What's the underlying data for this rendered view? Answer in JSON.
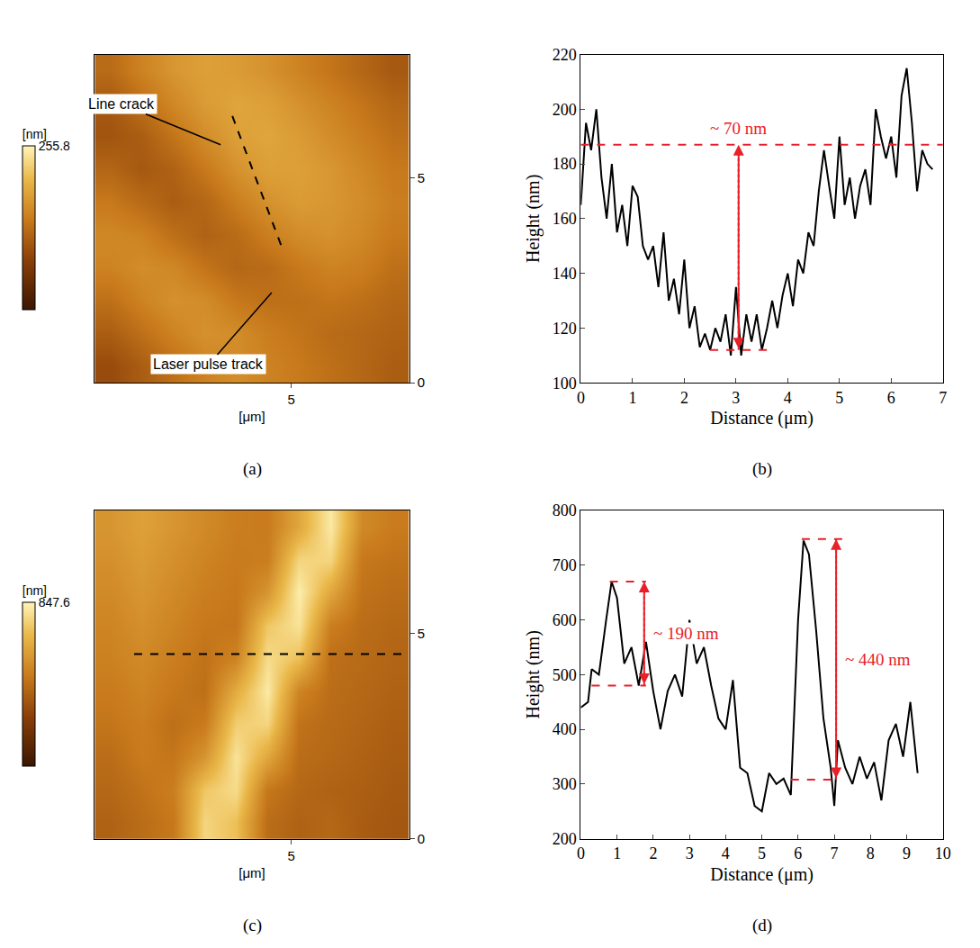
{
  "chart_data": [
    {
      "type": "heatmap",
      "label": "(a)",
      "x_label": "[μm]",
      "z_label": "[nm]",
      "x": [
        0.4,
        1.2,
        2.0,
        2.8,
        3.6,
        4.4,
        5.2,
        6.0,
        6.8,
        7.6
      ],
      "y": [
        0.4,
        1.2,
        2.0,
        2.8,
        3.6,
        4.4,
        5.2,
        6.0,
        6.8,
        7.6
      ],
      "z": [
        [
          90,
          110,
          130,
          150,
          160,
          150,
          140,
          130,
          120,
          110
        ],
        [
          110,
          130,
          150,
          165,
          160,
          145,
          135,
          125,
          120,
          115
        ],
        [
          130,
          150,
          165,
          160,
          140,
          130,
          130,
          135,
          130,
          120
        ],
        [
          150,
          160,
          155,
          135,
          120,
          125,
          140,
          150,
          145,
          130
        ],
        [
          155,
          150,
          130,
          115,
          125,
          145,
          160,
          165,
          155,
          140
        ],
        [
          140,
          125,
          110,
          120,
          145,
          165,
          175,
          170,
          160,
          145
        ],
        [
          120,
          105,
          115,
          140,
          165,
          180,
          180,
          170,
          155,
          140
        ],
        [
          100,
          110,
          135,
          160,
          180,
          185,
          175,
          160,
          145,
          130
        ],
        [
          105,
          130,
          155,
          175,
          185,
          180,
          165,
          150,
          135,
          120
        ],
        [
          125,
          150,
          170,
          180,
          175,
          165,
          150,
          135,
          120,
          105
        ]
      ],
      "zlim": [
        0,
        255.8
      ],
      "zticks": [
        255.8
      ],
      "xlim": [
        0,
        8
      ],
      "ylim": [
        0,
        8
      ],
      "xticks": [
        5
      ],
      "yticks": [
        0,
        5
      ],
      "profile_line": {
        "x": [
          3.5,
          4.8
        ],
        "y": [
          6.5,
          3.2
        ]
      },
      "annotations": [
        {
          "text": "Line crack",
          "x": 3.2,
          "y": 5.8
        },
        {
          "text": "Laser pulse track",
          "x": 4.5,
          "y": 2.2
        }
      ]
    },
    {
      "type": "line",
      "label": "(b)",
      "x_label": "Distance (μm)",
      "y_label": "Height (nm)",
      "color": "#000000",
      "x": [
        0,
        0.1,
        0.2,
        0.3,
        0.4,
        0.5,
        0.6,
        0.7,
        0.8,
        0.9,
        1.0,
        1.1,
        1.2,
        1.3,
        1.4,
        1.5,
        1.6,
        1.7,
        1.8,
        1.9,
        2.0,
        2.1,
        2.2,
        2.3,
        2.4,
        2.5,
        2.6,
        2.7,
        2.8,
        2.9,
        3.0,
        3.1,
        3.2,
        3.3,
        3.4,
        3.5,
        3.6,
        3.7,
        3.8,
        3.9,
        4.0,
        4.1,
        4.2,
        4.3,
        4.4,
        4.5,
        4.6,
        4.7,
        4.8,
        4.9,
        5.0,
        5.1,
        5.2,
        5.3,
        5.4,
        5.5,
        5.6,
        5.7,
        5.8,
        5.9,
        6.0,
        6.1,
        6.2,
        6.3,
        6.4,
        6.5,
        6.6,
        6.7,
        6.8
      ],
      "values": [
        165,
        195,
        185,
        200,
        175,
        160,
        180,
        155,
        165,
        150,
        172,
        168,
        150,
        145,
        150,
        135,
        155,
        130,
        138,
        125,
        145,
        120,
        128,
        113,
        118,
        112,
        120,
        115,
        125,
        110,
        135,
        110,
        125,
        115,
        125,
        112,
        120,
        130,
        120,
        132,
        140,
        128,
        145,
        140,
        155,
        150,
        170,
        185,
        172,
        160,
        190,
        165,
        175,
        160,
        172,
        178,
        165,
        200,
        190,
        182,
        190,
        175,
        205,
        215,
        195,
        170,
        185,
        180,
        178
      ],
      "xlim": [
        0,
        7
      ],
      "xticks": [
        0,
        1,
        2,
        3,
        4,
        5,
        6,
        7
      ],
      "ylim": [
        100,
        220
      ],
      "yticks": [
        100,
        120,
        140,
        160,
        180,
        200,
        220
      ],
      "measurements": [
        {
          "text": "~ 70 nm",
          "color": "#e8202a",
          "x": 3.05,
          "y_top": 187,
          "y_bottom": 112,
          "top_span": [
            0,
            7
          ],
          "bottom_span": [
            2.5,
            3.6
          ]
        }
      ]
    },
    {
      "type": "heatmap",
      "label": "(c)",
      "x_label": "[μm]",
      "z_label": "[nm]",
      "x": [
        0.4,
        1.2,
        2.0,
        2.8,
        3.6,
        4.4,
        5.2,
        6.0,
        6.8,
        7.6
      ],
      "y": [
        0.4,
        1.2,
        2.0,
        2.8,
        3.6,
        4.4,
        5.2,
        6.0,
        6.8,
        7.6
      ],
      "z": [
        [
          380,
          420,
          460,
          760,
          700,
          420,
          380,
          400,
          360,
          340
        ],
        [
          400,
          440,
          480,
          720,
          780,
          460,
          400,
          380,
          370,
          350
        ],
        [
          420,
          470,
          450,
          560,
          800,
          620,
          420,
          400,
          380,
          360
        ],
        [
          450,
          480,
          430,
          470,
          740,
          760,
          440,
          410,
          390,
          370
        ],
        [
          470,
          500,
          460,
          430,
          640,
          820,
          500,
          420,
          400,
          380
        ],
        [
          490,
          520,
          480,
          440,
          500,
          780,
          700,
          430,
          410,
          390
        ],
        [
          500,
          540,
          500,
          460,
          450,
          720,
          800,
          480,
          420,
          400
        ],
        [
          520,
          560,
          520,
          480,
          460,
          560,
          830,
          620,
          440,
          420
        ],
        [
          540,
          580,
          540,
          500,
          470,
          480,
          760,
          760,
          460,
          440
        ],
        [
          560,
          600,
          560,
          520,
          480,
          470,
          620,
          820,
          520,
          470
        ]
      ],
      "zlim": [
        0,
        847.6
      ],
      "zticks": [
        847.6
      ],
      "xlim": [
        0,
        8
      ],
      "ylim": [
        0,
        8
      ],
      "xticks": [
        5
      ],
      "yticks": [
        0,
        5
      ],
      "profile_line": {
        "x": [
          1.0,
          8.0
        ],
        "y": [
          4.5,
          4.5
        ]
      },
      "annotations": []
    },
    {
      "type": "line",
      "label": "(d)",
      "x_label": "Distance (μm)",
      "y_label": "Height (nm)",
      "color": "#000000",
      "x": [
        0,
        0.2,
        0.3,
        0.5,
        0.7,
        0.85,
        1.0,
        1.2,
        1.4,
        1.6,
        1.8,
        2.0,
        2.2,
        2.4,
        2.6,
        2.8,
        3.0,
        3.2,
        3.4,
        3.6,
        3.8,
        4.0,
        4.2,
        4.4,
        4.6,
        4.8,
        5.0,
        5.2,
        5.4,
        5.6,
        5.8,
        6.0,
        6.15,
        6.3,
        6.5,
        6.7,
        6.9,
        7.0,
        7.1,
        7.3,
        7.5,
        7.7,
        7.9,
        8.1,
        8.3,
        8.5,
        8.7,
        8.9,
        9.1,
        9.3
      ],
      "values": [
        440,
        450,
        510,
        500,
        600,
        670,
        640,
        520,
        550,
        480,
        560,
        470,
        400,
        470,
        500,
        460,
        600,
        520,
        550,
        480,
        420,
        400,
        490,
        330,
        320,
        260,
        250,
        320,
        300,
        310,
        280,
        600,
        745,
        720,
        580,
        420,
        330,
        260,
        380,
        330,
        300,
        350,
        310,
        340,
        270,
        380,
        410,
        350,
        450,
        320
      ],
      "xlim": [
        0,
        10
      ],
      "xticks": [
        0,
        1,
        2,
        3,
        4,
        5,
        6,
        7,
        8,
        9,
        10
      ],
      "ylim": [
        200,
        800
      ],
      "yticks": [
        200,
        300,
        400,
        500,
        600,
        700,
        800
      ],
      "measurements": [
        {
          "text": "~ 190 nm",
          "color": "#e8202a",
          "x": 1.75,
          "y_top": 670,
          "y_bottom": 480,
          "top_span": [
            0.8,
            1.8
          ],
          "bottom_span": [
            0.3,
            1.8
          ]
        },
        {
          "text": "~ 440 nm",
          "color": "#e8202a",
          "x": 7.05,
          "y_top": 748,
          "y_bottom": 308,
          "top_span": [
            6.1,
            7.3
          ],
          "bottom_span": [
            5.8,
            7.1
          ]
        }
      ]
    }
  ]
}
